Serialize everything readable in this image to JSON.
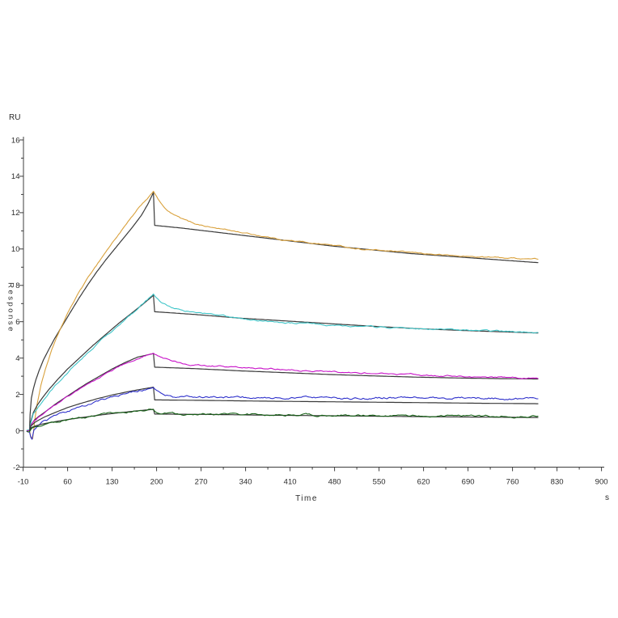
{
  "window": {
    "background": "#ffffff"
  },
  "chart_data": {
    "type": "line",
    "title": "",
    "axis_color": "#3c3c3c",
    "fit_color": "#3a3a3a",
    "text_color": "#2b2b2b",
    "x_axis": {
      "label": "Time",
      "unit": "s",
      "range": [
        -10,
        900
      ],
      "major_ticks": [
        -10,
        60,
        130,
        200,
        270,
        340,
        410,
        480,
        550,
        620,
        690,
        760,
        830,
        900
      ],
      "minor_tick_step": 70,
      "minor_tick_start": 25
    },
    "y_axis": {
      "label": "Response",
      "unit": "RU",
      "range": [
        -2,
        16
      ],
      "major_ticks": [
        -2,
        0,
        2,
        4,
        6,
        8,
        10,
        12,
        14,
        16
      ],
      "minor_ticks": [
        -1,
        1,
        3,
        5,
        7,
        9,
        11,
        13,
        15
      ]
    },
    "association_end_s": 195,
    "dissociation_end_s": 800,
    "series": [
      {
        "name": "orange",
        "color": "#d9a13c",
        "peak_ru": 13.15,
        "noise": 0.05,
        "data": [
          [
            -4,
            0
          ],
          [
            0,
            0
          ],
          [
            2,
            -0.35
          ],
          [
            5,
            -0.42
          ],
          [
            8,
            0.5
          ],
          [
            12,
            1.5
          ],
          [
            18,
            2.5
          ],
          [
            25,
            3.4
          ],
          [
            35,
            4.45
          ],
          [
            50,
            5.7
          ],
          [
            65,
            6.8
          ],
          [
            80,
            7.75
          ],
          [
            100,
            8.85
          ],
          [
            120,
            9.85
          ],
          [
            140,
            10.8
          ],
          [
            160,
            11.7
          ],
          [
            178,
            12.5
          ],
          [
            195,
            13.15
          ],
          [
            200,
            12.9
          ],
          [
            207,
            12.5
          ],
          [
            215,
            12.15
          ],
          [
            225,
            11.9
          ],
          [
            240,
            11.65
          ],
          [
            260,
            11.4
          ],
          [
            285,
            11.2
          ],
          [
            320,
            11.0
          ],
          [
            360,
            10.75
          ],
          [
            400,
            10.5
          ],
          [
            440,
            10.35
          ],
          [
            480,
            10.2
          ],
          [
            520,
            10.0
          ],
          [
            560,
            9.9
          ],
          [
            600,
            9.8
          ],
          [
            640,
            9.7
          ],
          [
            680,
            9.6
          ],
          [
            720,
            9.55
          ],
          [
            760,
            9.5
          ],
          [
            800,
            9.45
          ]
        ],
        "fit": [
          [
            0,
            0
          ],
          [
            1,
            0.9
          ],
          [
            3,
            1.8
          ],
          [
            6,
            2.3
          ],
          [
            10,
            2.8
          ],
          [
            15,
            3.3
          ],
          [
            22,
            3.9
          ],
          [
            30,
            4.45
          ],
          [
            40,
            5.1
          ],
          [
            52,
            5.8
          ],
          [
            64,
            6.5
          ],
          [
            78,
            7.3
          ],
          [
            92,
            8.05
          ],
          [
            106,
            8.75
          ],
          [
            120,
            9.4
          ],
          [
            134,
            10.0
          ],
          [
            148,
            10.6
          ],
          [
            162,
            11.2
          ],
          [
            176,
            11.85
          ],
          [
            186,
            12.45
          ],
          [
            195,
            13.1
          ],
          [
            197,
            11.3
          ],
          [
            240,
            11.15
          ],
          [
            300,
            10.9
          ],
          [
            360,
            10.65
          ],
          [
            420,
            10.4
          ],
          [
            480,
            10.15
          ],
          [
            540,
            9.95
          ],
          [
            600,
            9.75
          ],
          [
            660,
            9.6
          ],
          [
            720,
            9.45
          ],
          [
            800,
            9.25
          ]
        ]
      },
      {
        "name": "cyan",
        "color": "#3fc5c8",
        "peak_ru": 7.5,
        "noise": 0.06,
        "data": [
          [
            -4,
            0
          ],
          [
            0,
            0
          ],
          [
            3,
            0.55
          ],
          [
            6,
            0.9
          ],
          [
            12,
            1.2
          ],
          [
            20,
            1.6
          ],
          [
            30,
            2.05
          ],
          [
            45,
            2.65
          ],
          [
            60,
            3.2
          ],
          [
            80,
            3.9
          ],
          [
            100,
            4.55
          ],
          [
            120,
            5.2
          ],
          [
            140,
            5.8
          ],
          [
            160,
            6.4
          ],
          [
            178,
            6.95
          ],
          [
            195,
            7.5
          ],
          [
            200,
            7.3
          ],
          [
            207,
            7.05
          ],
          [
            215,
            6.9
          ],
          [
            228,
            6.75
          ],
          [
            245,
            6.6
          ],
          [
            265,
            6.5
          ],
          [
            290,
            6.38
          ],
          [
            320,
            6.25
          ],
          [
            350,
            6.1
          ],
          [
            385,
            6.0
          ],
          [
            420,
            5.92
          ],
          [
            460,
            5.85
          ],
          [
            500,
            5.78
          ],
          [
            540,
            5.72
          ],
          [
            580,
            5.66
          ],
          [
            620,
            5.6
          ],
          [
            660,
            5.55
          ],
          [
            700,
            5.5
          ],
          [
            750,
            5.45
          ],
          [
            800,
            5.4
          ]
        ],
        "fit": [
          [
            0,
            0
          ],
          [
            2,
            0.5
          ],
          [
            6,
            1.0
          ],
          [
            12,
            1.4
          ],
          [
            20,
            1.8
          ],
          [
            30,
            2.25
          ],
          [
            45,
            2.85
          ],
          [
            60,
            3.4
          ],
          [
            80,
            4.05
          ],
          [
            100,
            4.7
          ],
          [
            120,
            5.3
          ],
          [
            140,
            5.9
          ],
          [
            160,
            6.45
          ],
          [
            178,
            6.95
          ],
          [
            195,
            7.45
          ],
          [
            197,
            6.55
          ],
          [
            260,
            6.4
          ],
          [
            330,
            6.2
          ],
          [
            400,
            6.05
          ],
          [
            470,
            5.9
          ],
          [
            540,
            5.75
          ],
          [
            610,
            5.62
          ],
          [
            680,
            5.52
          ],
          [
            740,
            5.45
          ],
          [
            800,
            5.38
          ]
        ]
      },
      {
        "name": "magenta",
        "color": "#c813c8",
        "peak_ru": 4.28,
        "noise": 0.06,
        "data": [
          [
            -4,
            0
          ],
          [
            0,
            0
          ],
          [
            3,
            0.3
          ],
          [
            8,
            0.55
          ],
          [
            15,
            0.75
          ],
          [
            25,
            1.0
          ],
          [
            40,
            1.4
          ],
          [
            55,
            1.75
          ],
          [
            70,
            2.1
          ],
          [
            90,
            2.55
          ],
          [
            110,
            2.95
          ],
          [
            130,
            3.35
          ],
          [
            150,
            3.7
          ],
          [
            170,
            4.0
          ],
          [
            185,
            4.15
          ],
          [
            195,
            4.28
          ],
          [
            202,
            4.1
          ],
          [
            210,
            3.95
          ],
          [
            220,
            3.85
          ],
          [
            232,
            3.75
          ],
          [
            248,
            3.68
          ],
          [
            268,
            3.6
          ],
          [
            295,
            3.55
          ],
          [
            330,
            3.48
          ],
          [
            370,
            3.4
          ],
          [
            410,
            3.35
          ],
          [
            450,
            3.28
          ],
          [
            490,
            3.22
          ],
          [
            530,
            3.17
          ],
          [
            570,
            3.12
          ],
          [
            610,
            3.07
          ],
          [
            650,
            3.02
          ],
          [
            690,
            2.98
          ],
          [
            730,
            2.95
          ],
          [
            770,
            2.92
          ],
          [
            800,
            2.9
          ]
        ],
        "fit": [
          [
            0,
            0
          ],
          [
            2,
            0.3
          ],
          [
            8,
            0.6
          ],
          [
            15,
            0.8
          ],
          [
            25,
            1.05
          ],
          [
            40,
            1.45
          ],
          [
            55,
            1.8
          ],
          [
            70,
            2.15
          ],
          [
            90,
            2.6
          ],
          [
            110,
            3.0
          ],
          [
            130,
            3.4
          ],
          [
            150,
            3.75
          ],
          [
            170,
            4.05
          ],
          [
            195,
            4.25
          ],
          [
            197,
            3.5
          ],
          [
            260,
            3.42
          ],
          [
            330,
            3.3
          ],
          [
            400,
            3.2
          ],
          [
            470,
            3.1
          ],
          [
            540,
            3.02
          ],
          [
            610,
            2.95
          ],
          [
            680,
            2.9
          ],
          [
            740,
            2.87
          ],
          [
            800,
            2.85
          ]
        ]
      },
      {
        "name": "blue",
        "color": "#2f31cb",
        "peak_ru": 2.4,
        "noise": 0.09,
        "data": [
          [
            -4,
            0
          ],
          [
            0,
            0
          ],
          [
            2,
            -0.3
          ],
          [
            4,
            -0.42
          ],
          [
            7,
            0.1
          ],
          [
            12,
            0.3
          ],
          [
            20,
            0.45
          ],
          [
            32,
            0.65
          ],
          [
            48,
            0.9
          ],
          [
            65,
            1.12
          ],
          [
            85,
            1.38
          ],
          [
            105,
            1.6
          ],
          [
            125,
            1.8
          ],
          [
            145,
            2.0
          ],
          [
            165,
            2.15
          ],
          [
            180,
            2.28
          ],
          [
            195,
            2.4
          ],
          [
            200,
            2.2
          ],
          [
            207,
            2.05
          ],
          [
            216,
            1.97
          ],
          [
            228,
            1.9
          ],
          [
            245,
            1.87
          ],
          [
            270,
            1.85
          ],
          [
            300,
            1.83
          ],
          [
            340,
            1.85
          ],
          [
            380,
            1.82
          ],
          [
            420,
            1.8
          ],
          [
            460,
            1.83
          ],
          [
            500,
            1.78
          ],
          [
            540,
            1.8
          ],
          [
            580,
            1.85
          ],
          [
            620,
            1.82
          ],
          [
            660,
            1.8
          ],
          [
            700,
            1.83
          ],
          [
            740,
            1.78
          ],
          [
            800,
            1.72
          ]
        ],
        "fit": [
          [
            0,
            0
          ],
          [
            2,
            0.25
          ],
          [
            8,
            0.45
          ],
          [
            15,
            0.6
          ],
          [
            25,
            0.78
          ],
          [
            40,
            1.0
          ],
          [
            60,
            1.28
          ],
          [
            80,
            1.5
          ],
          [
            105,
            1.75
          ],
          [
            130,
            1.97
          ],
          [
            155,
            2.15
          ],
          [
            175,
            2.28
          ],
          [
            195,
            2.4
          ],
          [
            197,
            1.7
          ],
          [
            280,
            1.67
          ],
          [
            370,
            1.63
          ],
          [
            460,
            1.6
          ],
          [
            550,
            1.57
          ],
          [
            640,
            1.54
          ],
          [
            720,
            1.51
          ],
          [
            800,
            1.49
          ]
        ]
      },
      {
        "name": "green",
        "color": "#156015",
        "peak_ru": 1.2,
        "noise": 0.08,
        "data": [
          [
            -4,
            0
          ],
          [
            0,
            0
          ],
          [
            3,
            0.15
          ],
          [
            8,
            0.25
          ],
          [
            15,
            0.32
          ],
          [
            25,
            0.4
          ],
          [
            40,
            0.5
          ],
          [
            60,
            0.62
          ],
          [
            85,
            0.75
          ],
          [
            110,
            0.87
          ],
          [
            135,
            0.97
          ],
          [
            160,
            1.07
          ],
          [
            180,
            1.14
          ],
          [
            195,
            1.2
          ],
          [
            200,
            1.05
          ],
          [
            208,
            0.98
          ],
          [
            220,
            0.95
          ],
          [
            240,
            0.93
          ],
          [
            270,
            0.92
          ],
          [
            310,
            0.9
          ],
          [
            350,
            0.9
          ],
          [
            400,
            0.88
          ],
          [
            450,
            0.87
          ],
          [
            500,
            0.86
          ],
          [
            550,
            0.85
          ],
          [
            600,
            0.84
          ],
          [
            650,
            0.83
          ],
          [
            700,
            0.82
          ],
          [
            750,
            0.81
          ],
          [
            800,
            0.8
          ]
        ],
        "fit": [
          [
            0,
            0
          ],
          [
            3,
            0.18
          ],
          [
            10,
            0.28
          ],
          [
            20,
            0.37
          ],
          [
            35,
            0.47
          ],
          [
            55,
            0.59
          ],
          [
            80,
            0.72
          ],
          [
            110,
            0.86
          ],
          [
            140,
            0.99
          ],
          [
            170,
            1.1
          ],
          [
            195,
            1.18
          ],
          [
            197,
            0.92
          ],
          [
            280,
            0.9
          ],
          [
            370,
            0.86
          ],
          [
            460,
            0.83
          ],
          [
            550,
            0.8
          ],
          [
            640,
            0.77
          ],
          [
            720,
            0.75
          ],
          [
            800,
            0.73
          ]
        ]
      }
    ]
  }
}
